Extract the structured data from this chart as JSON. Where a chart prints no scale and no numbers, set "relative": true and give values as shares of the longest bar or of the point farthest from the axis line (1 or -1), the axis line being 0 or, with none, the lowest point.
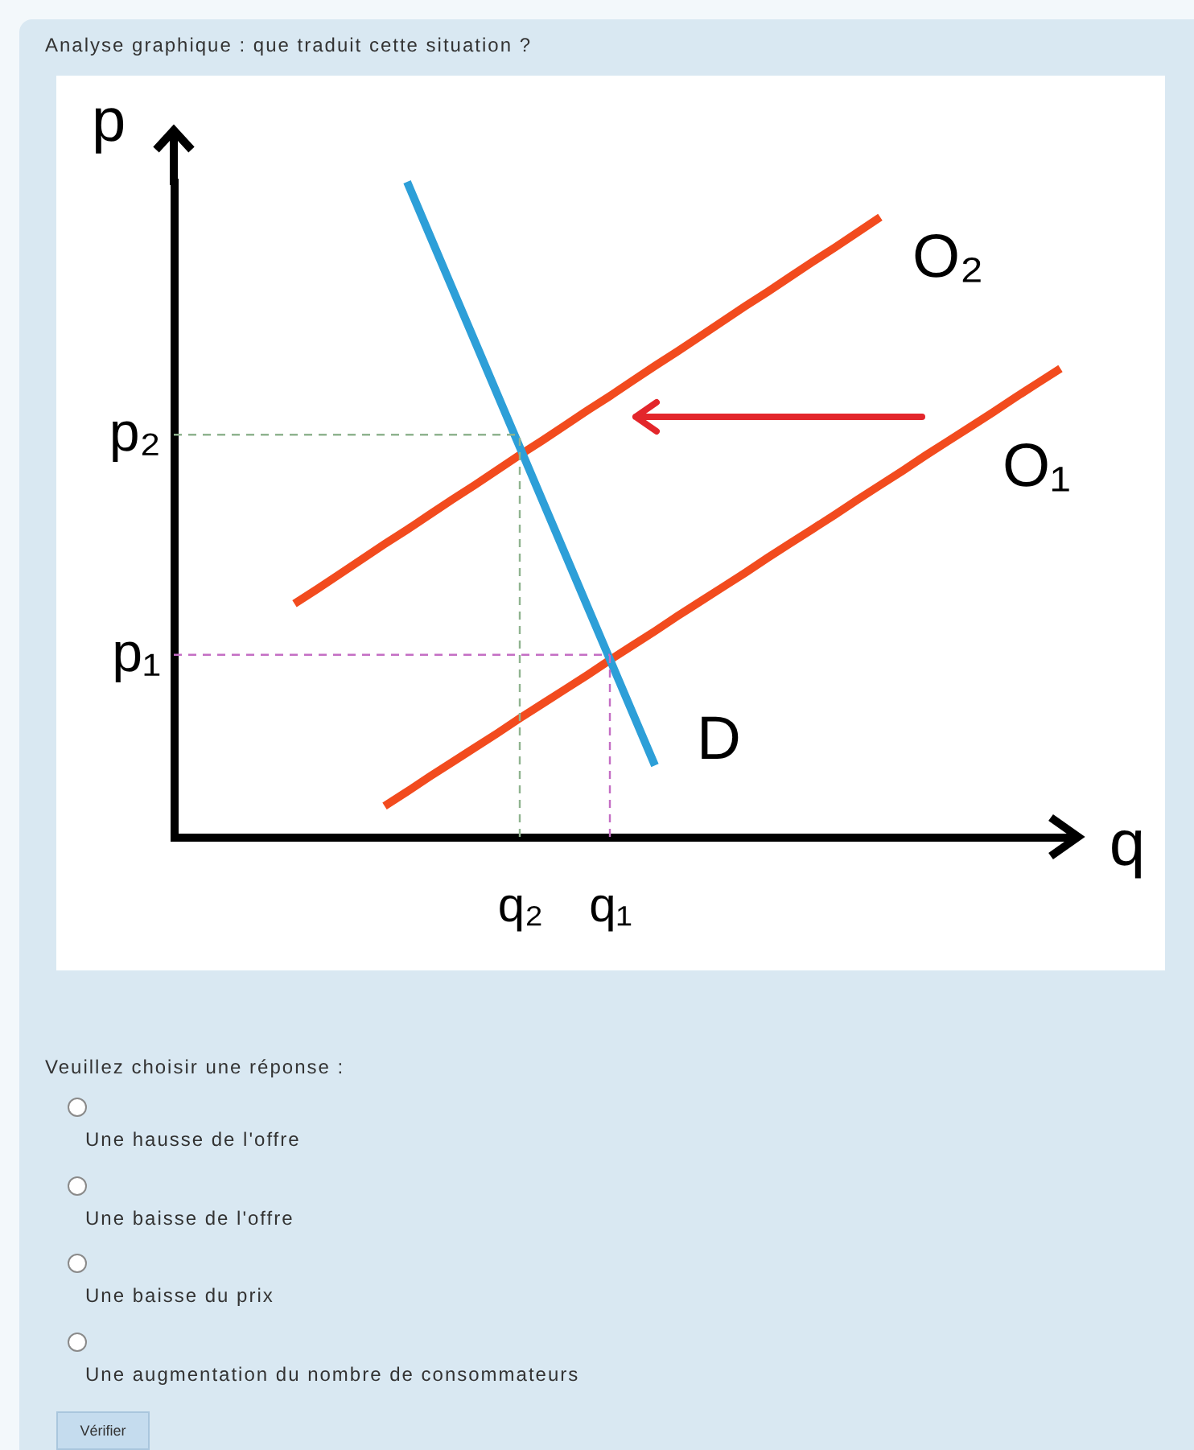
{
  "chart_data": {
    "type": "line",
    "title": "Analyse graphique : que traduit cette situation ?",
    "xlabel": "q",
    "ylabel": "p",
    "relative": true,
    "categories": [
      null,
      null,
      null,
      null,
      null,
      null,
      null,
      null,
      null,
      null,
      null,
      null,
      null,
      null,
      null,
      "q₂",
      null,
      null,
      null,
      "q₁",
      null,
      null,
      null,
      null,
      null,
      null,
      null,
      null,
      null,
      null,
      null,
      null,
      null,
      null,
      null,
      null,
      null,
      null,
      null,
      null
    ],
    "series": [
      {
        "name": "O₂",
        "color": "#f24b1e",
        "values": [
          null,
          null,
          null,
          null,
          null,
          0.356,
          0.378,
          0.401,
          0.424,
          0.447,
          0.469,
          0.492,
          0.515,
          0.537,
          0.56,
          0.583,
          0.605,
          0.628,
          0.651,
          0.673,
          0.696,
          0.719,
          0.741,
          0.764,
          0.787,
          0.81,
          0.832,
          0.855,
          0.878,
          0.9,
          0.923,
          0.946,
          null,
          null,
          null,
          null,
          null,
          null,
          null,
          null
        ]
      },
      {
        "name": "O₁",
        "color": "#f24b1e",
        "values": [
          null,
          null,
          null,
          null,
          null,
          null,
          null,
          null,
          null,
          0.047,
          0.069,
          0.092,
          0.114,
          0.136,
          0.158,
          0.181,
          0.203,
          0.225,
          0.247,
          0.27,
          0.292,
          0.314,
          0.337,
          0.359,
          0.381,
          0.403,
          0.426,
          0.448,
          0.47,
          0.492,
          0.515,
          0.537,
          0.559,
          0.582,
          0.604,
          0.626,
          0.648,
          0.671,
          0.693,
          0.715
        ]
      },
      {
        "name": "D",
        "color": "#2d9fd8",
        "values": [
          null,
          null,
          null,
          null,
          null,
          null,
          null,
          null,
          null,
          null,
          1,
          0.919,
          0.838,
          0.757,
          0.676,
          0.595,
          0.514,
          0.433,
          0.352,
          0.271,
          0.19,
          0.109,
          null,
          null,
          null,
          null,
          null,
          null,
          null,
          null,
          null,
          null,
          null,
          null,
          null,
          null,
          null,
          null,
          null,
          null
        ]
      }
    ],
    "ref_lines": [
      {
        "axis": "y",
        "value": 0.614,
        "label": "p₂",
        "color": "#8fb38f",
        "line_style": "dashed"
      },
      {
        "axis": "x",
        "value": "q₂",
        "color": "#8fb38f",
        "line_style": "dashed"
      },
      {
        "axis": "y",
        "value": 0.278,
        "label": "p₁",
        "color": "#c46ec4",
        "line_style": "dashed"
      },
      {
        "axis": "x",
        "value": "q₁",
        "color": "#c46ec4",
        "line_style": "dashed"
      }
    ],
    "annotations": [
      "Veuillez choisir une réponse :",
      "Une hausse de l'offre",
      "Une baisse de l'offre",
      "Une baisse du prix",
      "Une augmentation du nombre de consommateurs",
      "Vérifier"
    ]
  }
}
